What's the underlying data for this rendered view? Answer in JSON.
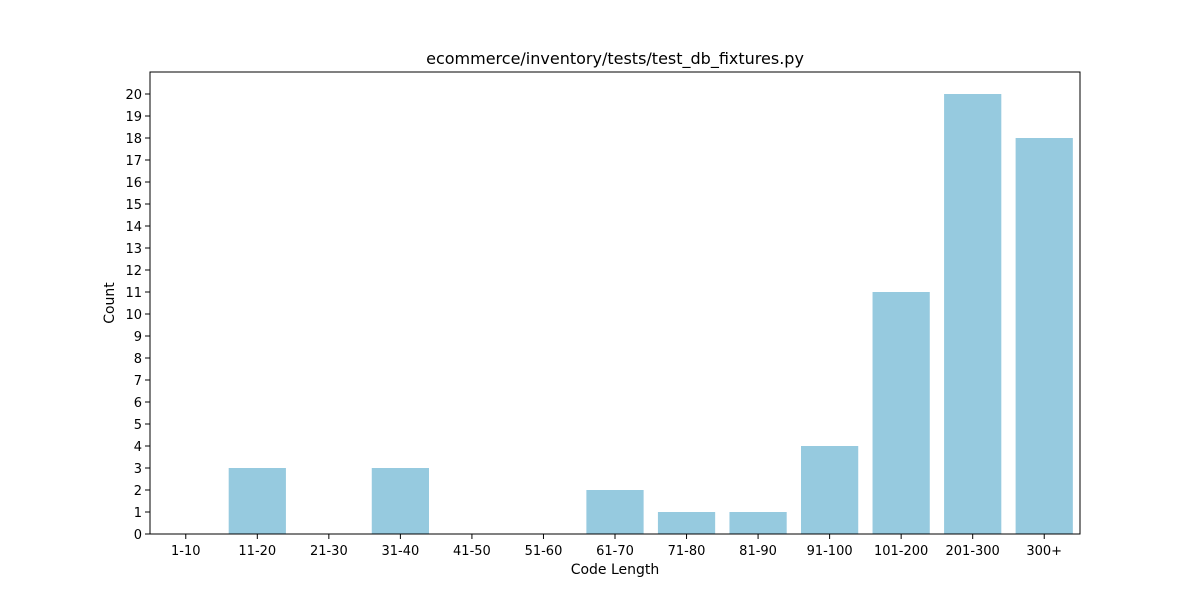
{
  "chart_data": {
    "type": "bar",
    "title": "ecommerce/inventory/tests/test_db_fixtures.py",
    "xlabel": "Code Length",
    "ylabel": "Count",
    "categories": [
      "1-10",
      "11-20",
      "21-30",
      "31-40",
      "41-50",
      "51-60",
      "61-70",
      "71-80",
      "81-90",
      "91-100",
      "101-200",
      "201-300",
      "300+"
    ],
    "values": [
      0,
      3,
      0,
      3,
      0,
      0,
      2,
      1,
      1,
      4,
      11,
      20,
      18
    ],
    "ylim": [
      0,
      21
    ],
    "yticks": [
      0,
      1,
      2,
      3,
      4,
      5,
      6,
      7,
      8,
      9,
      10,
      11,
      12,
      13,
      14,
      15,
      16,
      17,
      18,
      19,
      20
    ],
    "grid": false,
    "bar_color": "#96cadf"
  }
}
